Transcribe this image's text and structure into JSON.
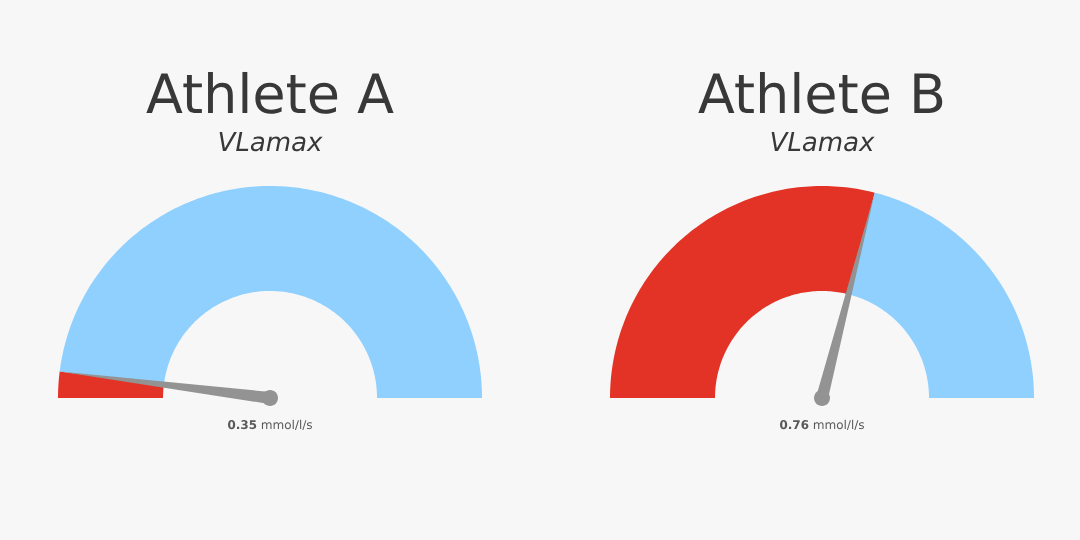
{
  "chart_data": [
    {
      "type": "donut",
      "title": "Athlete A",
      "subtitle": "VLamax",
      "categories": [
        null,
        null
      ],
      "values": [
        4,
        96
      ],
      "colors": [
        "#e33326",
        "#90d0fe"
      ],
      "annotations": [
        "**0.35** mmol/l/s"
      ]
    },
    {
      "type": "donut",
      "title": "Athlete B",
      "subtitle": "VLamax",
      "categories": [
        null,
        null
      ],
      "values": [
        58,
        42
      ],
      "colors": [
        "#e33326",
        "#90d0fe"
      ],
      "annotations": [
        "**0.76** mmol/l/s"
      ]
    }
  ]
}
